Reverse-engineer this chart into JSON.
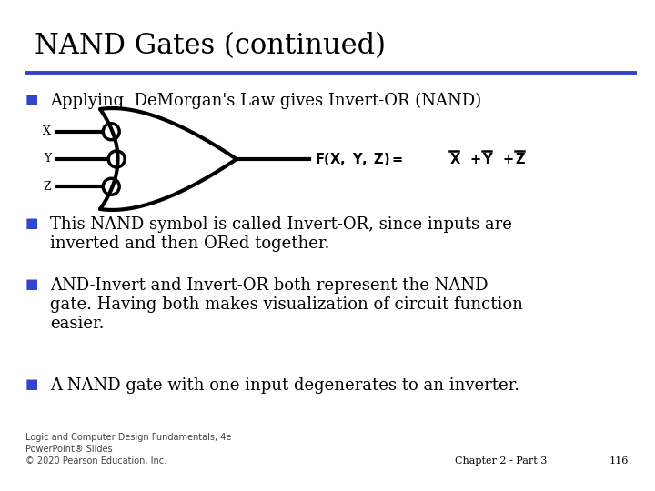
{
  "title": "NAND Gates (continued)",
  "title_fontsize": 22,
  "title_color": "#000000",
  "title_font": "serif",
  "rule_color": "#3344cc",
  "bullet_color": "#3344cc",
  "bullet_char": "■",
  "bullet_size": 11,
  "body_fontsize": 13,
  "body_font": "serif",
  "body_color": "#000000",
  "bullet1": "Applying  De​Morgan's Law gives Invert-OR (NAND)",
  "bullet2": "This NAND symbol is called Invert-OR, since inputs are\ninverted and then ORed together.",
  "bullet3": "AND-Invert and Invert-OR both represent the NAND\ngate. Having both makes visualization of circuit function\neasier.",
  "bullet4": "A NAND gate with one input degenerates to an inverter.",
  "footer_left_line1": "Logic and Computer Design Fundamentals, 4e",
  "footer_left_line2": "PowerPoint® Slides",
  "footer_left_line3": "© 2020 Pearson Education, Inc.",
  "footer_right": "Chapter 2 - Part 3",
  "footer_page": "116",
  "footer_fontsize": 7,
  "bg_color": "#ffffff",
  "gate_lw": 3.0,
  "bubble_lw": 2.5
}
